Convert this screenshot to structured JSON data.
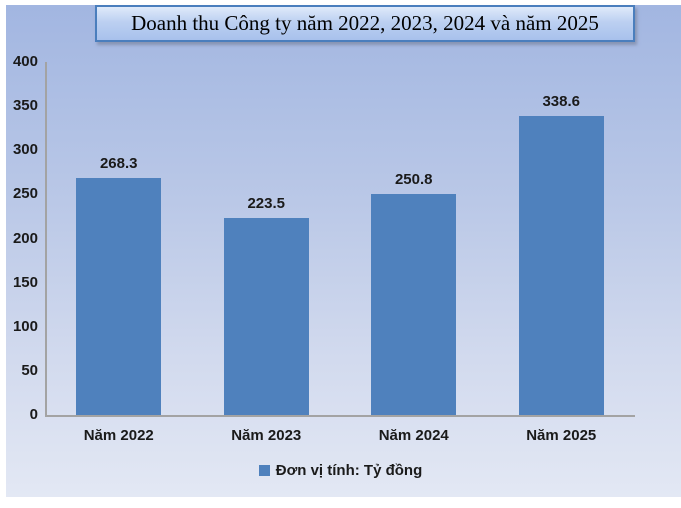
{
  "header": {
    "title": "Doanh thu Công ty năm 2022, 2023, 2024 và năm 2025"
  },
  "legend": {
    "label": "Đơn vị tính: Tỷ đồng"
  },
  "colors": {
    "bar": "#4f81bd",
    "title_border": "#4a7ebd",
    "background_top": "#a2b6e1",
    "background_bottom": "#e3e8f4",
    "axis": "#a3a3a3",
    "text": "#1a1a1a"
  },
  "chart_data": {
    "type": "bar",
    "title": "Doanh thu Công ty năm 2022, 2023, 2024 và năm 2025",
    "categories": [
      "Năm 2022",
      "Năm 2023",
      "Năm 2024",
      "Năm 2025"
    ],
    "values": [
      268.3,
      223.5,
      250.8,
      338.6
    ],
    "data_labels": [
      "268.3",
      "223.5",
      "250.8",
      "338.6"
    ],
    "series_name": "Đơn vị tính: Tỷ đồng",
    "xlabel": "",
    "ylabel": "",
    "ylim": [
      0,
      400
    ],
    "yticks": [
      0,
      50,
      100,
      150,
      200,
      250,
      300,
      350,
      400
    ],
    "grid": false,
    "legend_position": "bottom",
    "legend_label": "Đơn vị tính: Tỷ đồng"
  }
}
